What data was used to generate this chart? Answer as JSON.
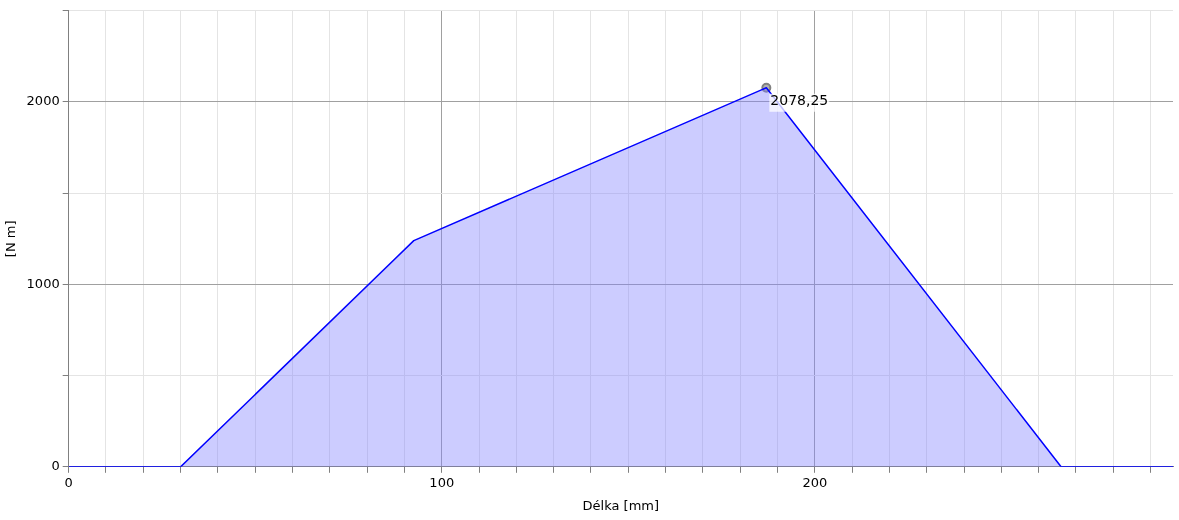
{
  "chart_data": {
    "type": "area",
    "xlabel": "Délka [mm]",
    "ylabel": "[N m]",
    "xlim": [
      0,
      296
    ],
    "ylim": [
      0,
      2500
    ],
    "xticks": [
      0,
      {
        "value": 10,
        "label": null
      },
      {
        "value": 20,
        "label": null
      },
      {
        "value": 30,
        "label": null
      },
      {
        "value": 40,
        "label": null
      },
      {
        "value": 50,
        "label": null
      },
      {
        "value": 60,
        "label": null
      },
      {
        "value": 70,
        "label": null
      },
      {
        "value": 80,
        "label": null
      },
      {
        "value": 90,
        "label": null
      },
      100,
      {
        "value": 110,
        "label": null
      },
      {
        "value": 120,
        "label": null
      },
      {
        "value": 130,
        "label": null
      },
      {
        "value": 140,
        "label": null
      },
      {
        "value": 150,
        "label": null
      },
      {
        "value": 160,
        "label": null
      },
      {
        "value": 170,
        "label": null
      },
      {
        "value": 180,
        "label": null
      },
      {
        "value": 190,
        "label": null
      },
      200,
      {
        "value": 210,
        "label": null
      },
      {
        "value": 220,
        "label": null
      },
      {
        "value": 230,
        "label": null
      },
      {
        "value": 240,
        "label": null
      },
      {
        "value": 250,
        "label": null
      },
      {
        "value": 260,
        "label": null
      },
      {
        "value": 270,
        "label": null
      },
      {
        "value": 280,
        "label": null
      },
      {
        "value": 290,
        "label": null
      }
    ],
    "yticks": [
      0,
      {
        "value": 500,
        "label": null
      },
      1000,
      {
        "value": 1500,
        "label": null
      },
      2000,
      {
        "value": 2500,
        "label": null
      }
    ],
    "grid": true,
    "legend": false,
    "series": [
      {
        "color": "#0000ff",
        "x": [
          0,
          30,
          92.5,
          187,
          266,
          296
        ],
        "values": [
          0,
          0,
          1240,
          2078.25,
          0,
          0
        ]
      },
      {
        "type": "scatter",
        "color": "#808080",
        "marker": "circle",
        "x": [
          187
        ],
        "values": [
          2078.25
        ],
        "value_labels": [
          "2078,25"
        ]
      }
    ]
  }
}
